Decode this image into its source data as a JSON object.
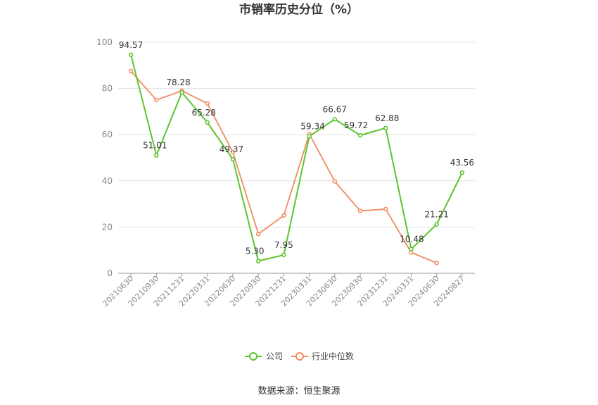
{
  "chart_data": {
    "type": "line",
    "title": "市销率历史分位（%）",
    "categories": [
      "20210630",
      "20210930",
      "20211231",
      "20220331",
      "20220630",
      "20220930",
      "20221231",
      "20230331",
      "20230630",
      "20230930",
      "20231231",
      "20240331",
      "20240630",
      "20240827"
    ],
    "ylim": [
      0,
      100
    ],
    "yticks": [
      0,
      20,
      40,
      60,
      80,
      100
    ],
    "grid": true,
    "legend_position": "bottom",
    "series": [
      {
        "name": "公司",
        "color": "#5ec42f",
        "values": [
          94.57,
          51.01,
          78.28,
          65.28,
          49.37,
          5.3,
          7.95,
          59.34,
          66.67,
          59.72,
          62.88,
          10.48,
          21.21,
          43.56
        ],
        "labels": [
          "94.57",
          "51.01",
          "78.28",
          "65.28",
          "49.37",
          "5.30",
          "7.95",
          "59.34",
          "66.67",
          "59.72",
          "62.88",
          "10.48",
          "21.21",
          "43.56"
        ]
      },
      {
        "name": "行业中位数",
        "color": "#f08b61",
        "values": [
          87.5,
          75.0,
          79.0,
          73.5,
          52.5,
          17.0,
          25.0,
          60.3,
          39.8,
          27.0,
          27.8,
          9.0,
          4.5,
          null
        ]
      }
    ],
    "source": "数据来源：恒生聚源"
  }
}
